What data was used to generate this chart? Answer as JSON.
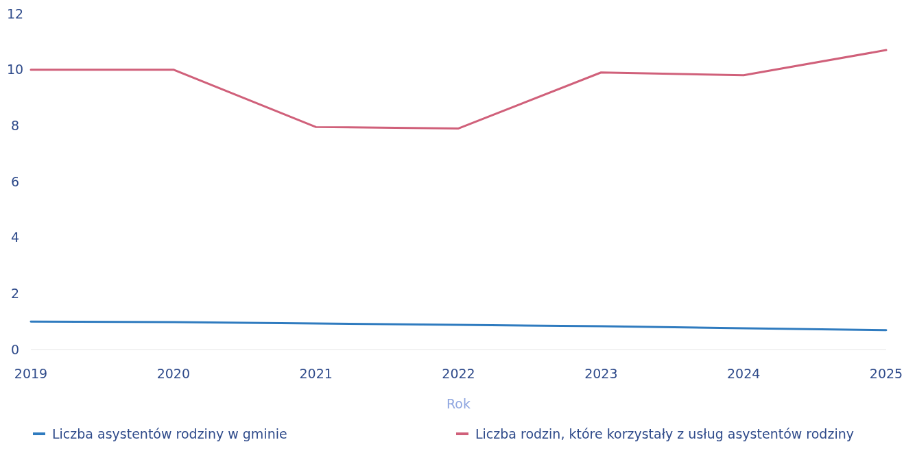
{
  "chart_data": {
    "type": "line",
    "xlabel": "Rok",
    "x": [
      2019,
      2020,
      2021,
      2022,
      2023,
      2024,
      2025
    ],
    "xlim": [
      2019,
      2025
    ],
    "xticks": [
      2019,
      2020,
      2021,
      2022,
      2023,
      2024,
      2025
    ],
    "ylim": [
      0,
      12
    ],
    "yticks": [
      0,
      2,
      4,
      6,
      8,
      10,
      12
    ],
    "legend": "bottom",
    "series": [
      {
        "name": "Liczba asystentów rodziny w gminie",
        "color": "#2f7bbf",
        "values": [
          1.0,
          0.98,
          0.93,
          0.88,
          0.83,
          0.76,
          0.69
        ]
      },
      {
        "name": "Liczba rodzin, które korzystały z usług asystentów rodziny",
        "color": "#d0607a",
        "values": [
          10,
          10,
          7.95,
          7.9,
          9.9,
          9.8,
          10.7
        ]
      }
    ]
  }
}
